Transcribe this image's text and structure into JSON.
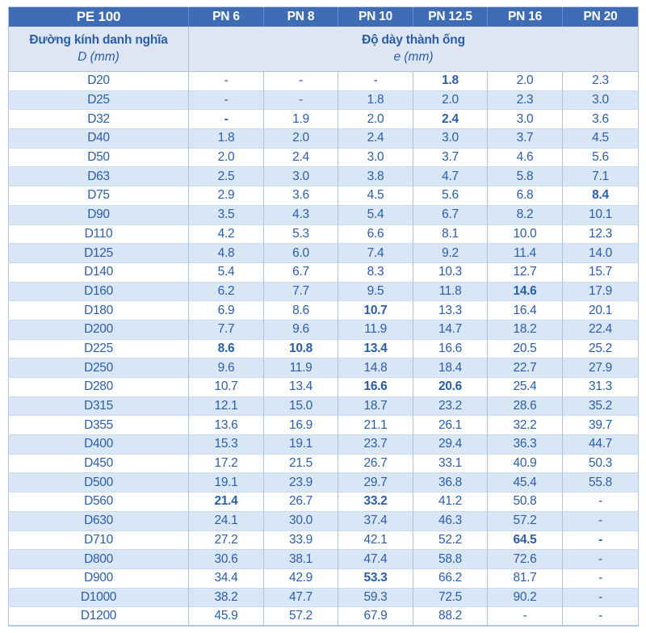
{
  "colors": {
    "header_bg": "#3e6db6",
    "header_text": "#ffffff",
    "subheader_bg": "#dde6f2",
    "stripe_bg": "#d9e6f5",
    "text": "#2b5da9",
    "grid_v": "#a9c4e3",
    "grid_h": "#cadbef",
    "outer": "#b0c6e4"
  },
  "chart_data": {
    "type": "table",
    "title": "PE 100",
    "columns": [
      "PN 6",
      "PN 8",
      "PN 10",
      "PN 12.5",
      "PN 16",
      "PN 20"
    ],
    "row_header_label": "Đường kính danh nghĩa",
    "row_header_unit": "D (mm)",
    "values_label": "Độ dày thành ống",
    "values_unit": "e (mm)",
    "rows": [
      {
        "d": "D20",
        "values": [
          "-",
          "-",
          "-",
          "1.8",
          "2.0",
          "2.3"
        ],
        "bold": [
          3
        ]
      },
      {
        "d": "D25",
        "values": [
          "-",
          "-",
          "1.8",
          "2.0",
          "2.3",
          "3.0"
        ]
      },
      {
        "d": "D32",
        "values": [
          "-",
          "1.9",
          "2.0",
          "2.4",
          "3.0",
          "3.6"
        ],
        "bold": [
          0,
          3
        ]
      },
      {
        "d": "D40",
        "values": [
          "1.8",
          "2.0",
          "2.4",
          "3.0",
          "3.7",
          "4.5"
        ]
      },
      {
        "d": "D50",
        "values": [
          "2.0",
          "2.4",
          "3.0",
          "3.7",
          "4.6",
          "5.6"
        ]
      },
      {
        "d": "D63",
        "values": [
          "2.5",
          "3.0",
          "3.8",
          "4.7",
          "5.8",
          "7.1"
        ]
      },
      {
        "d": "D75",
        "values": [
          "2.9",
          "3.6",
          "4.5",
          "5.6",
          "6.8",
          "8.4"
        ],
        "bold": [
          5
        ]
      },
      {
        "d": "D90",
        "values": [
          "3.5",
          "4.3",
          "5.4",
          "6.7",
          "8.2",
          "10.1"
        ]
      },
      {
        "d": "D110",
        "values": [
          "4.2",
          "5.3",
          "6.6",
          "8.1",
          "10.0",
          "12.3"
        ]
      },
      {
        "d": "D125",
        "values": [
          "4.8",
          "6.0",
          "7.4",
          "9.2",
          "11.4",
          "14.0"
        ]
      },
      {
        "d": "D140",
        "values": [
          "5.4",
          "6.7",
          "8.3",
          "10.3",
          "12.7",
          "15.7"
        ]
      },
      {
        "d": "D160",
        "values": [
          "6.2",
          "7.7",
          "9.5",
          "11.8",
          "14.6",
          "17.9"
        ],
        "bold": [
          4
        ]
      },
      {
        "d": "D180",
        "values": [
          "6.9",
          "8.6",
          "10.7",
          "13.3",
          "16.4",
          "20.1"
        ],
        "bold": [
          2
        ]
      },
      {
        "d": "D200",
        "values": [
          "7.7",
          "9.6",
          "11.9",
          "14.7",
          "18.2",
          "22.4"
        ]
      },
      {
        "d": "D225",
        "values": [
          "8.6",
          "10.8",
          "13.4",
          "16.6",
          "20.5",
          "25.2"
        ],
        "bold": [
          0,
          1,
          2
        ]
      },
      {
        "d": "D250",
        "values": [
          "9.6",
          "11.9",
          "14.8",
          "18.4",
          "22.7",
          "27.9"
        ]
      },
      {
        "d": "D280",
        "values": [
          "10.7",
          "13.4",
          "16.6",
          "20.6",
          "25.4",
          "31.3"
        ],
        "bold": [
          2,
          3
        ]
      },
      {
        "d": "D315",
        "values": [
          "12.1",
          "15.0",
          "18.7",
          "23.2",
          "28.6",
          "35.2"
        ]
      },
      {
        "d": "D355",
        "values": [
          "13.6",
          "16.9",
          "21.1",
          "26.1",
          "32.2",
          "39.7"
        ]
      },
      {
        "d": "D400",
        "values": [
          "15.3",
          "19.1",
          "23.7",
          "29.4",
          "36.3",
          "44.7"
        ]
      },
      {
        "d": "D450",
        "values": [
          "17.2",
          "21.5",
          "26.7",
          "33.1",
          "40.9",
          "50.3"
        ]
      },
      {
        "d": "D500",
        "values": [
          "19.1",
          "23.9",
          "29.7",
          "36.8",
          "45.4",
          "55.8"
        ]
      },
      {
        "d": "D560",
        "values": [
          "21.4",
          "26.7",
          "33.2",
          "41.2",
          "50.8",
          "-"
        ],
        "bold": [
          0,
          2
        ]
      },
      {
        "d": "D630",
        "values": [
          "24.1",
          "30.0",
          "37.4",
          "46.3",
          "57.2",
          "-"
        ]
      },
      {
        "d": "D710",
        "values": [
          "27.2",
          "33.9",
          "42.1",
          "52.2",
          "64.5",
          "-"
        ],
        "bold": [
          4,
          5
        ]
      },
      {
        "d": "D800",
        "values": [
          "30.6",
          "38.1",
          "47.4",
          "58.8",
          "72.6",
          "-"
        ]
      },
      {
        "d": "D900",
        "values": [
          "34.4",
          "42.9",
          "53.3",
          "66.2",
          "81.7",
          "-"
        ],
        "bold": [
          2
        ]
      },
      {
        "d": "D1000",
        "values": [
          "38.2",
          "47.7",
          "59.3",
          "72.5",
          "90.2",
          "-"
        ]
      },
      {
        "d": "D1200",
        "values": [
          "45.9",
          "57.2",
          "67.9",
          "88.2",
          "-",
          "-"
        ]
      }
    ]
  }
}
